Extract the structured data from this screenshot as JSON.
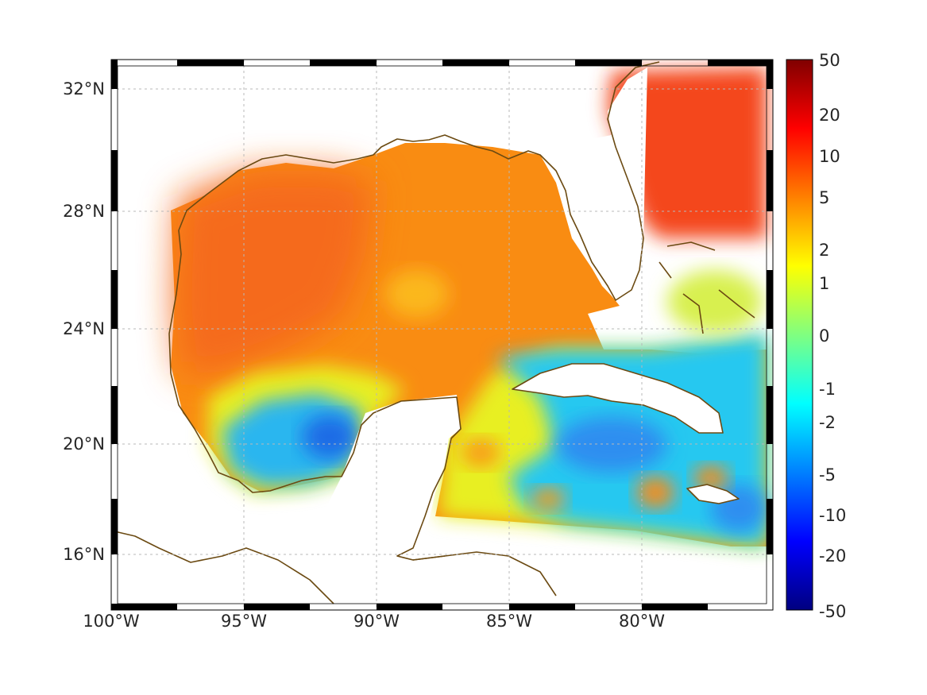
{
  "map": {
    "lon_ticks": [
      "100°W",
      "95°W",
      "90°W",
      "85°W",
      "80°W"
    ],
    "lat_ticks": [
      "32°N",
      "28°N",
      "24°N",
      "20°N",
      "16°N"
    ],
    "grid": true,
    "frame_style": "alternating black/white border",
    "coastline_color": "#6b4a12",
    "land_color": "#ffffff"
  },
  "colorbar": {
    "tick_labels": [
      "50",
      "20",
      "10",
      "5",
      "2",
      "1",
      "0",
      "-1",
      "-2",
      "-5",
      "-10",
      "-20",
      "-50"
    ],
    "colormap": "jet",
    "stops": [
      "#800000",
      "#ff0000",
      "#ff8000",
      "#ffff00",
      "#80ff80",
      "#00ffff",
      "#0080ff",
      "#0000ff",
      "#000080"
    ]
  },
  "regions": {
    "warm_color": "#f56a1a",
    "positive_color": "#f99b12",
    "mid_color": "#e8ef20",
    "negative_color": "#28c8f0",
    "strong_negative_color": "#1e6ce6"
  }
}
